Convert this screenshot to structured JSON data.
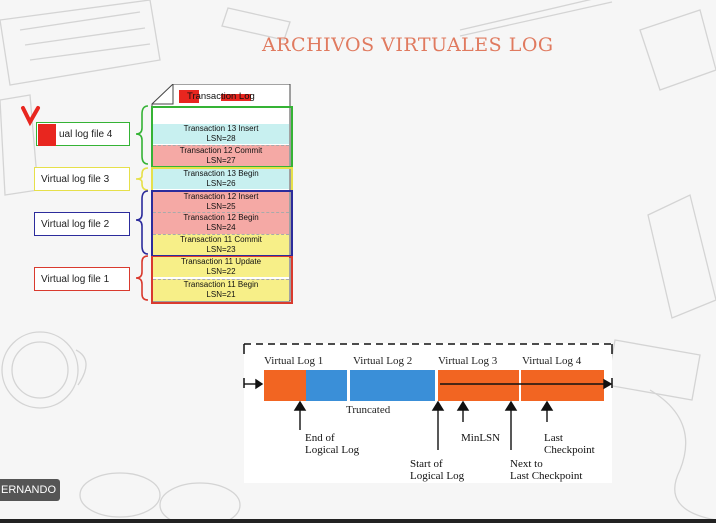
{
  "slide_title": "ARCHIVOS VIRTUALES LOG",
  "transaction_log": {
    "header": "Transaction Log",
    "entries": [
      {
        "text": "Transaction 13 Insert",
        "lsn": "LSN=28",
        "color": "#c8f0f0"
      },
      {
        "text": "Transaction 12 Commit",
        "lsn": "LSN=27",
        "color": "#f5a9a5"
      },
      {
        "text": "Transaction 13 Begin",
        "lsn": "LSN=26",
        "color": "#c8f0f0"
      },
      {
        "text": "Transaction 12 Insert",
        "lsn": "LSN=25",
        "color": "#f5a9a5"
      },
      {
        "text": "Transaction 12 Begin",
        "lsn": "LSN=24",
        "color": "#f5a9a5"
      },
      {
        "text": "Transaction 11 Commit",
        "lsn": "LSN=23",
        "color": "#f7ef88"
      },
      {
        "text": "Transaction 11 Update",
        "lsn": "LSN=22",
        "color": "#f7ef88"
      },
      {
        "text": "Transaction 11 Begin",
        "lsn": "LSN=21",
        "color": "#f7ef88"
      }
    ]
  },
  "virtual_log_files": [
    {
      "label": "ual log file 4",
      "border_color": "#35b335"
    },
    {
      "label": "Virtual log file 3",
      "border_color": "#e6e04a"
    },
    {
      "label": "Virtual log file 2",
      "border_color": "#2c2c9c"
    },
    {
      "label": "Virtual log file 1",
      "border_color": "#d93a2e"
    }
  ],
  "lifecycle_diagram": {
    "segments": [
      "Virtual Log 1",
      "Virtual Log 2",
      "Virtual Log 3",
      "Virtual Log 4"
    ],
    "truncated_label": "Truncated",
    "annotations": {
      "end_logical": [
        "End of",
        "Logical Log"
      ],
      "min_lsn": [
        "MinLSN"
      ],
      "last_checkpoint": [
        "Last",
        "Checkpoint"
      ],
      "start_logical": [
        "Start of",
        "Logical Log"
      ],
      "next_truncation": [
        "Next to",
        "Last Checkpoint"
      ]
    },
    "colors": {
      "active": "#f26522",
      "truncated": "#3a8fd8"
    }
  },
  "presenter_tag": "ERNANDO"
}
